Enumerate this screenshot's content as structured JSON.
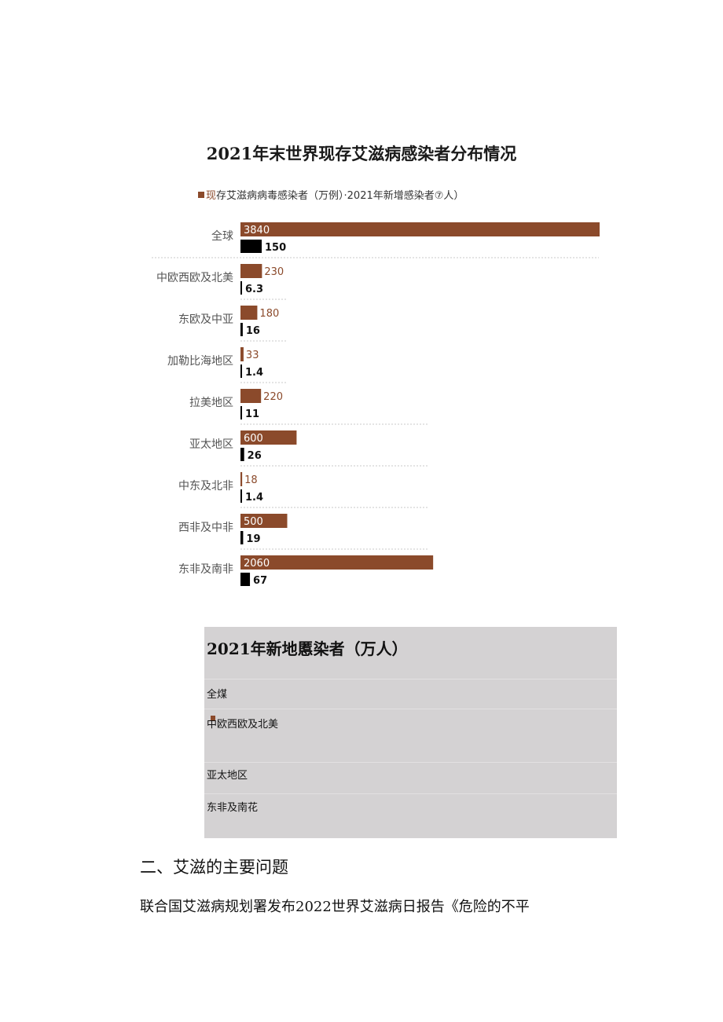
{
  "chart_data": {
    "type": "bar",
    "title": "2021年末世界现存艾滋病感染者分布情况",
    "legend": {
      "position": "top",
      "text_1": "现",
      "text_2": "存艾滋病病毒感染者（万例）·2021年新增感染者⑦人）"
    },
    "categories": [
      "全球",
      "中欧西欧及北美",
      "东欧及中亚",
      "加勒比海地区",
      "拉美地区",
      "亚太地区",
      "中东及北非",
      "西非及中非",
      "东非及南非"
    ],
    "series": [
      {
        "values": [
          3840,
          230,
          180,
          33,
          220,
          600,
          18,
          500,
          2060
        ],
        "labels": [
          "3840",
          "230",
          "180",
          "33",
          "220",
          "600",
          "18",
          "500",
          "2060"
        ],
        "color": "#8b4a2b"
      },
      {
        "values": [
          150,
          6.3,
          16,
          1.4,
          11,
          26,
          1.4,
          19,
          67
        ],
        "labels": [
          "150",
          "6.3",
          "16",
          "1.4",
          "11",
          "26",
          "1.4",
          "19",
          "67"
        ],
        "color": "#000000"
      }
    ]
  },
  "panel": {
    "title": "2021年新地慝染者（万人）",
    "rows": [
      "全煤",
      "中欧西欧及北美",
      "亚太地区",
      "东非及南花"
    ]
  },
  "section_heading": "二、艾滋的主要问题",
  "body_text": "联合国艾滋病规划署发布2022世界艾滋病日报告《危险的不平"
}
